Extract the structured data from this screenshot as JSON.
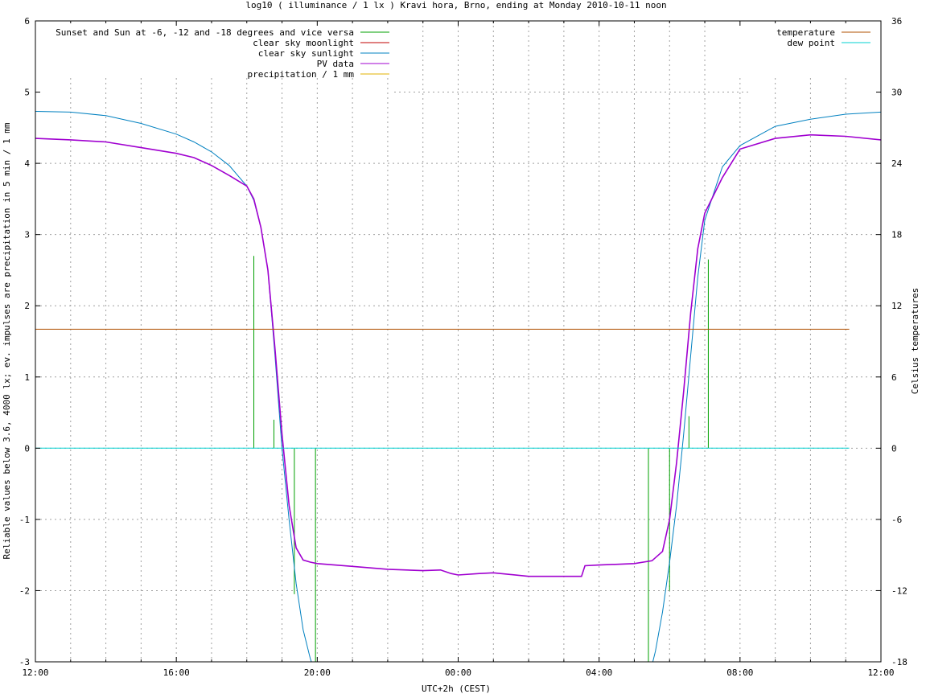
{
  "chart_data": {
    "type": "line",
    "title": "log10 ( illuminance / 1 lx ) Kravi hora, Brno, ending at Monday 2010-10-11 noon",
    "xlabel": "UTC+2h (CEST)",
    "ylabel": "Reliable values below 3.6, 4000 lx; ev. impulses are precipitation in 5 min / 1 mm",
    "y2label": "Celsius temperatures",
    "xlim": [
      0,
      24
    ],
    "ylim": [
      -3,
      6
    ],
    "y2lim": [
      -18,
      36
    ],
    "x_tick_labels": [
      "12:00",
      "16:00",
      "20:00",
      "00:00",
      "04:00",
      "08:00",
      "12:00"
    ],
    "y_tick_labels": [
      "-3",
      "-2",
      "-1",
      "0",
      "1",
      "2",
      "3",
      "4",
      "5",
      "6"
    ],
    "y2_tick_labels": [
      "-18",
      "-12",
      "-6",
      "0",
      "6",
      "12",
      "18",
      "24",
      "30",
      "36"
    ],
    "grid": true,
    "legend": [
      {
        "label": "Sunset and Sun at -6, -12 and -18 degrees and vice versa",
        "color": "#00a000",
        "position": "top-left"
      },
      {
        "label": "clear sky moonlight",
        "color": "#c00000",
        "position": "top-left"
      },
      {
        "label": "clear sky sunlight",
        "color": "#0080c0",
        "position": "top-left"
      },
      {
        "label": "PV data",
        "color": "#a000d0",
        "position": "top-left"
      },
      {
        "label": "precipitation / 1 mm",
        "color": "#e0b000",
        "position": "top-left"
      },
      {
        "label": "temperature",
        "color": "#b05000",
        "position": "top-right"
      },
      {
        "label": "dew point",
        "color": "#00d0d0",
        "position": "top-right"
      }
    ],
    "series": [
      {
        "name": "clear sky sunlight",
        "color": "#0080c0",
        "x": [
          0,
          1,
          2,
          3,
          4,
          4.5,
          5,
          5.5,
          6,
          6.2,
          6.4,
          6.6,
          6.8,
          7.0,
          7.2,
          7.4,
          7.6,
          7.8,
          8.0,
          8.2,
          17.2,
          17.4,
          17.6,
          17.8,
          18.0,
          18.2,
          18.4,
          18.6,
          18.8,
          19.0,
          19.5,
          20.0,
          21.0,
          22.0,
          23.0,
          24.0
        ],
        "y": [
          4.73,
          4.72,
          4.67,
          4.56,
          4.41,
          4.3,
          4.16,
          3.97,
          3.68,
          3.48,
          3.1,
          2.5,
          1.3,
          0.0,
          -1.0,
          -1.9,
          -2.55,
          -2.95,
          -3.25,
          -3.5,
          -3.5,
          -3.25,
          -2.85,
          -2.3,
          -1.6,
          -0.8,
          0.2,
          1.3,
          2.4,
          3.2,
          3.95,
          4.25,
          4.52,
          4.62,
          4.69,
          4.72
        ]
      },
      {
        "name": "PV data",
        "color": "#a000d0",
        "x": [
          0,
          1,
          2,
          3,
          4,
          4.5,
          5,
          5.5,
          6,
          6.2,
          6.4,
          6.6,
          6.8,
          7.0,
          7.2,
          7.4,
          7.6,
          7.8,
          8.0,
          9.0,
          10.0,
          11.0,
          11.5,
          11.8,
          12.0,
          12.6,
          13.0,
          14.0,
          14.5,
          15.0,
          15.2,
          15.5,
          15.6,
          16.0,
          17.0,
          17.5,
          17.8,
          18.0,
          18.2,
          18.4,
          18.6,
          18.8,
          19.0,
          19.5,
          20.0,
          21.0,
          22.0,
          23.0,
          24.0
        ],
        "y": [
          4.35,
          4.33,
          4.3,
          4.22,
          4.14,
          4.08,
          3.97,
          3.83,
          3.68,
          3.5,
          3.1,
          2.5,
          1.4,
          0.2,
          -0.8,
          -1.4,
          -1.57,
          -1.6,
          -1.62,
          -1.66,
          -1.7,
          -1.72,
          -1.71,
          -1.76,
          -1.78,
          -1.76,
          -1.75,
          -1.8,
          -1.8,
          -1.8,
          -1.8,
          -1.8,
          -1.65,
          -1.64,
          -1.62,
          -1.58,
          -1.45,
          -1.0,
          -0.2,
          0.8,
          1.9,
          2.8,
          3.3,
          3.8,
          4.2,
          4.35,
          4.4,
          4.38,
          4.33
        ]
      },
      {
        "name": "temperature",
        "color": "#b05000",
        "x": [
          0,
          23.1
        ],
        "y": [
          1.67,
          1.67
        ]
      },
      {
        "name": "dew point",
        "color": "#00d0d0",
        "x": [
          0,
          23.1
        ],
        "y": [
          0,
          0
        ]
      }
    ],
    "impulses": [
      {
        "x": 6.2,
        "y": 2.7
      },
      {
        "x": 6.77,
        "y": 0.4
      },
      {
        "x": 7.35,
        "y": -2.05
      },
      {
        "x": 7.95,
        "y": -3.05
      },
      {
        "x": 17.4,
        "y": -3.1
      },
      {
        "x": 18.0,
        "y": -2.0
      },
      {
        "x": 18.55,
        "y": 0.45
      },
      {
        "x": 19.1,
        "y": 2.65
      }
    ]
  }
}
